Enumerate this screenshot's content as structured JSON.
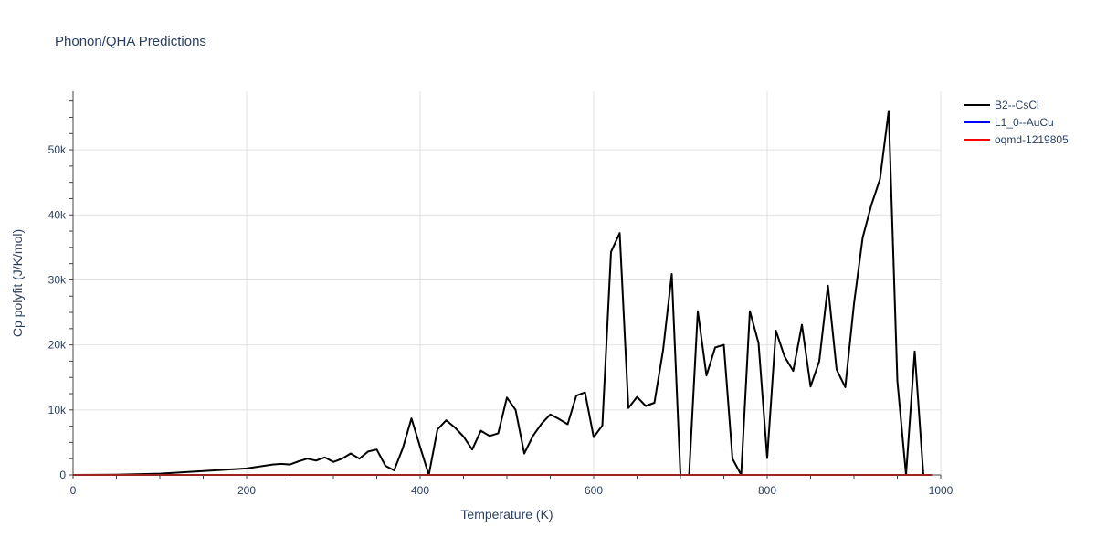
{
  "chart_data": {
    "type": "line",
    "title": "Phonon/QHA Predictions",
    "xlabel": "Temperature (K)",
    "ylabel": "Cp polyfit (J/K/mol)",
    "xlim": [
      0,
      1000
    ],
    "ylim": [
      0,
      59000
    ],
    "xticks": [
      0,
      200,
      400,
      600,
      800,
      1000
    ],
    "xtick_labels": [
      "0",
      "200",
      "400",
      "600",
      "800",
      "1000"
    ],
    "yticks": [
      0,
      10000,
      20000,
      30000,
      40000,
      50000
    ],
    "ytick_labels": [
      "0",
      "10k",
      "20k",
      "30k",
      "40k",
      "50k"
    ],
    "grid": true,
    "legend_position": "top-right",
    "series": [
      {
        "name": "B2--CsCl",
        "color": "#000000",
        "x": [
          0,
          50,
          100,
          150,
          200,
          230,
          240,
          250,
          260,
          270,
          280,
          290,
          300,
          310,
          320,
          330,
          340,
          350,
          360,
          370,
          380,
          390,
          400,
          410,
          420,
          430,
          440,
          450,
          460,
          470,
          480,
          490,
          500,
          510,
          520,
          530,
          540,
          550,
          560,
          570,
          580,
          590,
          600,
          610,
          620,
          630,
          640,
          650,
          660,
          670,
          680,
          690,
          700,
          710,
          720,
          730,
          740,
          750,
          760,
          770,
          780,
          790,
          800,
          810,
          820,
          830,
          840,
          850,
          860,
          870,
          880,
          890,
          900,
          910,
          920,
          930,
          940,
          950,
          960,
          970,
          980
        ],
        "y": [
          0,
          30,
          200,
          600,
          1000,
          1600,
          1700,
          1600,
          2100,
          2500,
          2200,
          2700,
          2000,
          2500,
          3300,
          2500,
          3600,
          3900,
          1400,
          700,
          4100,
          8700,
          4300,
          0,
          7000,
          8400,
          7300,
          5900,
          3900,
          6800,
          6000,
          6400,
          11900,
          10000,
          3300,
          6000,
          7900,
          9300,
          8600,
          7800,
          12200,
          12700,
          5800,
          7600,
          34300,
          37200,
          10300,
          12000,
          10600,
          11100,
          19200,
          30900,
          0,
          0,
          25200,
          15300,
          19600,
          20000,
          2500,
          0,
          25200,
          20300,
          2600,
          22200,
          18200,
          16000,
          23100,
          13600,
          17500,
          29100,
          16200,
          13500,
          26300,
          36500,
          41500,
          45500,
          56000,
          14500,
          0,
          19000,
          0
        ]
      },
      {
        "name": "L1_0--AuCu",
        "color": "#0000ff",
        "x": [
          0,
          50,
          100,
          150,
          200,
          250,
          300,
          350,
          400,
          450,
          500,
          550,
          600,
          650,
          700,
          750,
          800,
          850,
          900,
          950,
          990
        ],
        "y": [
          0,
          0,
          0,
          0,
          0,
          0,
          0,
          0,
          0,
          0,
          0,
          0,
          0,
          0,
          0,
          0,
          0,
          0,
          0,
          0,
          0
        ]
      },
      {
        "name": "oqmd-1219805",
        "color": "#ff0000",
        "x": [
          0,
          50,
          100,
          150,
          200,
          250,
          300,
          350,
          400,
          450,
          500,
          550,
          600,
          650,
          700,
          750,
          800,
          850,
          900,
          950,
          990
        ],
        "y": [
          0,
          0,
          0,
          0,
          0,
          0,
          0,
          0,
          0,
          0,
          0,
          0,
          0,
          0,
          0,
          0,
          0,
          0,
          0,
          0,
          0
        ]
      }
    ]
  }
}
